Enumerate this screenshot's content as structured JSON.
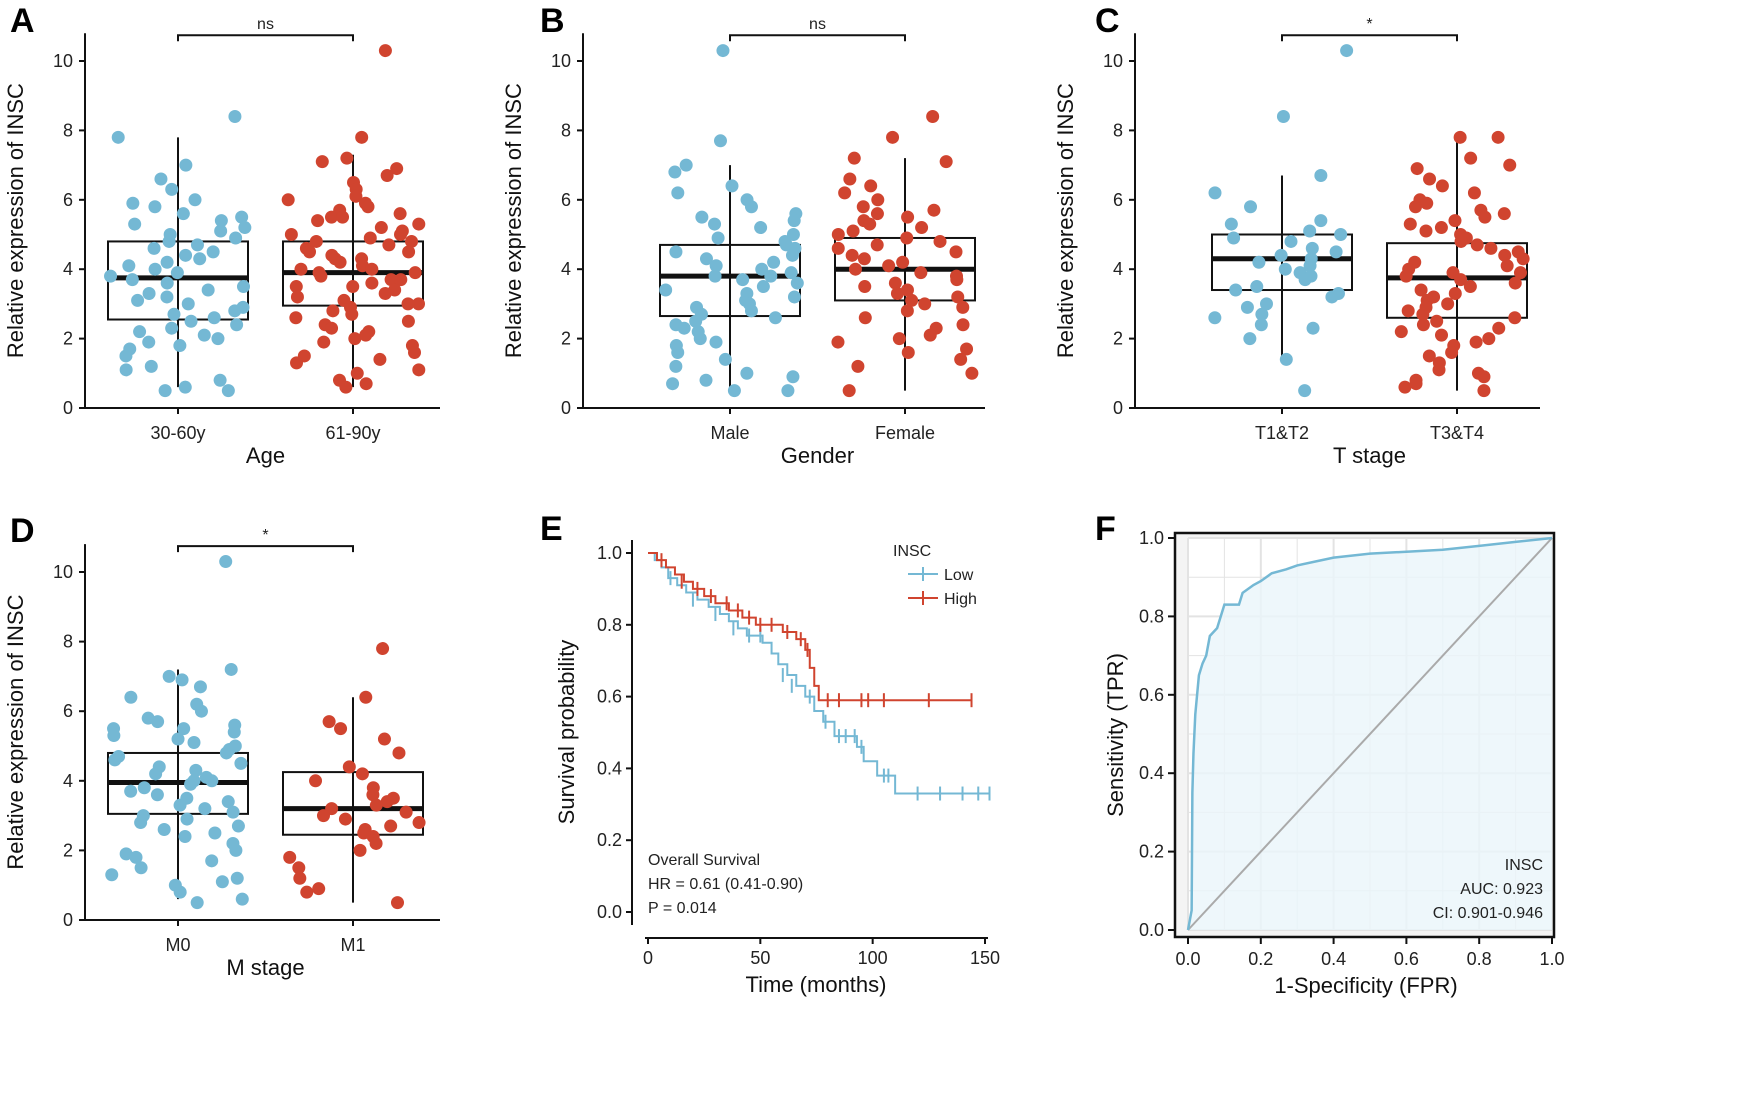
{
  "colors": {
    "low": "#74B8D4",
    "high": "#D0442F",
    "roc_fill": "#EAF5FA",
    "diag": "#AAAAAA"
  },
  "chart_data": [
    {
      "panel": "A",
      "type": "boxplot",
      "xlabel": "Age",
      "ylabel": "Relative expression of INSC",
      "yticks": [
        0,
        2,
        4,
        6,
        8,
        10
      ],
      "ylim": [
        0,
        10.8
      ],
      "significance": "ns",
      "groups": [
        {
          "label": "30-60y",
          "color": "#74B8D4",
          "q1": 2.55,
          "median": 3.75,
          "q3": 4.8,
          "whisker_low": 0.6,
          "whisker_high": 7.8,
          "points": [
            8.4,
            7.8,
            7.0,
            6.6,
            6.3,
            6.0,
            5.9,
            5.8,
            5.6,
            5.5,
            5.4,
            5.3,
            5.2,
            5.1,
            5.0,
            4.9,
            4.8,
            4.7,
            4.6,
            4.5,
            4.4,
            4.3,
            4.2,
            4.1,
            4.0,
            3.9,
            3.8,
            3.7,
            3.6,
            3.5,
            3.4,
            3.3,
            3.2,
            3.1,
            3.0,
            2.9,
            2.8,
            2.7,
            2.6,
            2.5,
            2.4,
            2.3,
            2.2,
            2.1,
            2.0,
            1.9,
            1.8,
            1.7,
            1.5,
            1.2,
            1.1,
            0.8,
            0.6,
            0.5,
            0.5
          ]
        },
        {
          "label": "61-90y",
          "color": "#D0442F",
          "q1": 2.95,
          "median": 3.9,
          "q3": 4.8,
          "whisker_low": 0.6,
          "whisker_high": 7.3,
          "points": [
            10.3,
            7.8,
            7.2,
            7.1,
            6.9,
            6.7,
            6.5,
            6.3,
            6.1,
            6.0,
            5.9,
            5.8,
            5.7,
            5.6,
            5.5,
            5.5,
            5.4,
            5.3,
            5.2,
            5.1,
            5.0,
            5.0,
            4.9,
            4.8,
            4.8,
            4.7,
            4.6,
            4.5,
            4.5,
            4.4,
            4.3,
            4.3,
            4.2,
            4.1,
            4.0,
            4.0,
            3.9,
            3.9,
            3.8,
            3.7,
            3.7,
            3.6,
            3.5,
            3.5,
            3.4,
            3.3,
            3.2,
            3.1,
            3.0,
            3.0,
            2.9,
            2.8,
            2.7,
            2.6,
            2.5,
            2.4,
            2.3,
            2.2,
            2.1,
            2.0,
            1.9,
            1.8,
            1.6,
            1.5,
            1.4,
            1.3,
            1.1,
            1.0,
            0.8,
            0.7,
            0.6
          ]
        }
      ]
    },
    {
      "panel": "B",
      "type": "boxplot",
      "xlabel": "Gender",
      "ylabel": "Relative expression of INSC",
      "yticks": [
        0,
        2,
        4,
        6,
        8,
        10
      ],
      "ylim": [
        0,
        10.8
      ],
      "significance": "ns",
      "groups": [
        {
          "label": "Male",
          "color": "#74B8D4",
          "q1": 2.65,
          "median": 3.8,
          "q3": 4.7,
          "whisker_low": 0.5,
          "whisker_high": 7.0,
          "points": [
            10.3,
            7.7,
            7.0,
            6.8,
            6.4,
            6.2,
            6.0,
            5.8,
            5.6,
            5.5,
            5.4,
            5.3,
            5.2,
            5.0,
            4.9,
            4.8,
            4.7,
            4.6,
            4.5,
            4.4,
            4.3,
            4.2,
            4.1,
            4.0,
            3.9,
            3.8,
            3.8,
            3.7,
            3.6,
            3.5,
            3.4,
            3.3,
            3.2,
            3.1,
            3.0,
            2.9,
            2.8,
            2.7,
            2.6,
            2.5,
            2.4,
            2.3,
            2.2,
            2.0,
            1.9,
            1.8,
            1.6,
            1.4,
            1.2,
            1.0,
            0.9,
            0.8,
            0.7,
            0.5,
            0.5
          ]
        },
        {
          "label": "Female",
          "color": "#D0442F",
          "q1": 3.1,
          "median": 4.0,
          "q3": 4.9,
          "whisker_low": 0.5,
          "whisker_high": 7.2,
          "points": [
            8.4,
            7.8,
            7.2,
            7.1,
            6.6,
            6.4,
            6.2,
            6.0,
            5.8,
            5.7,
            5.6,
            5.5,
            5.4,
            5.3,
            5.2,
            5.1,
            5.0,
            4.9,
            4.8,
            4.7,
            4.6,
            4.5,
            4.4,
            4.3,
            4.2,
            4.1,
            4.0,
            3.9,
            3.8,
            3.7,
            3.6,
            3.5,
            3.4,
            3.3,
            3.2,
            3.1,
            3.0,
            2.9,
            2.8,
            2.6,
            2.4,
            2.3,
            2.1,
            2.0,
            1.9,
            1.7,
            1.6,
            1.4,
            1.2,
            1.0,
            0.5
          ]
        }
      ]
    },
    {
      "panel": "C",
      "type": "boxplot",
      "xlabel": "T stage",
      "ylabel": "Relative expression of INSC",
      "yticks": [
        0,
        2,
        4,
        6,
        8,
        10
      ],
      "ylim": [
        0,
        10.8
      ],
      "significance": "*",
      "groups": [
        {
          "label": "T1&T2",
          "color": "#74B8D4",
          "q1": 3.4,
          "median": 4.3,
          "q3": 5.0,
          "whisker_low": 1.4,
          "whisker_high": 6.7,
          "points": [
            10.3,
            8.4,
            6.7,
            6.2,
            5.8,
            5.4,
            5.3,
            5.1,
            5.0,
            4.9,
            4.8,
            4.6,
            4.5,
            4.4,
            4.3,
            4.2,
            4.1,
            4.0,
            3.9,
            3.8,
            3.7,
            3.5,
            3.4,
            3.3,
            3.2,
            3.0,
            2.9,
            2.7,
            2.6,
            2.4,
            2.3,
            2.0,
            1.4,
            0.5
          ]
        },
        {
          "label": "T3&T4",
          "color": "#D0442F",
          "q1": 2.6,
          "median": 3.75,
          "q3": 4.75,
          "whisker_low": 0.5,
          "whisker_high": 7.8,
          "points": [
            7.8,
            7.8,
            7.2,
            7.0,
            6.9,
            6.6,
            6.4,
            6.2,
            6.0,
            5.9,
            5.8,
            5.7,
            5.6,
            5.5,
            5.4,
            5.3,
            5.2,
            5.1,
            5.0,
            4.9,
            4.8,
            4.7,
            4.6,
            4.5,
            4.4,
            4.3,
            4.2,
            4.1,
            4.0,
            3.9,
            3.9,
            3.8,
            3.7,
            3.6,
            3.5,
            3.4,
            3.3,
            3.2,
            3.1,
            3.0,
            2.9,
            2.8,
            2.7,
            2.6,
            2.5,
            2.4,
            2.3,
            2.2,
            2.1,
            2.0,
            1.9,
            1.8,
            1.6,
            1.5,
            1.3,
            1.1,
            1.0,
            0.9,
            0.8,
            0.7,
            0.6,
            0.5
          ]
        }
      ]
    },
    {
      "panel": "D",
      "type": "boxplot",
      "xlabel": "M stage",
      "ylabel": "Relative expression of INSC",
      "yticks": [
        0,
        2,
        4,
        6,
        8,
        10
      ],
      "ylim": [
        0,
        10.8
      ],
      "significance": "*",
      "groups": [
        {
          "label": "M0",
          "color": "#74B8D4",
          "q1": 3.05,
          "median": 3.95,
          "q3": 4.8,
          "whisker_low": 0.6,
          "whisker_high": 7.2,
          "points": [
            10.3,
            7.2,
            7.0,
            6.9,
            6.7,
            6.4,
            6.2,
            6.0,
            5.8,
            5.7,
            5.6,
            5.5,
            5.5,
            5.4,
            5.3,
            5.2,
            5.1,
            5.0,
            4.9,
            4.8,
            4.7,
            4.6,
            4.5,
            4.4,
            4.3,
            4.2,
            4.1,
            4.0,
            4.0,
            3.9,
            3.8,
            3.7,
            3.6,
            3.5,
            3.4,
            3.3,
            3.2,
            3.1,
            3.0,
            2.9,
            2.8,
            2.7,
            2.6,
            2.5,
            2.4,
            2.2,
            2.0,
            1.9,
            1.8,
            1.7,
            1.5,
            1.3,
            1.2,
            1.1,
            1.0,
            0.8,
            0.6,
            0.5
          ]
        },
        {
          "label": "M1",
          "color": "#D0442F",
          "q1": 2.45,
          "median": 3.2,
          "q3": 4.25,
          "whisker_low": 0.5,
          "whisker_high": 6.4,
          "points": [
            7.8,
            6.4,
            5.7,
            5.5,
            5.2,
            4.8,
            4.4,
            4.2,
            4.0,
            3.8,
            3.6,
            3.5,
            3.4,
            3.3,
            3.2,
            3.1,
            3.0,
            2.9,
            2.8,
            2.7,
            2.6,
            2.5,
            2.4,
            2.2,
            2.0,
            1.8,
            1.5,
            1.2,
            0.9,
            0.8,
            0.5
          ]
        }
      ]
    },
    {
      "panel": "E",
      "type": "line",
      "subtype": "kaplan-meier",
      "xlabel": "Time (months)",
      "ylabel": "Survival probability",
      "xticks": [
        0,
        50,
        100,
        150
      ],
      "yticks": [
        0.0,
        0.2,
        0.4,
        0.6,
        0.8,
        1.0
      ],
      "xlim": [
        0,
        155
      ],
      "ylim": [
        0,
        1
      ],
      "legend": {
        "title": "INSC",
        "position": "top-right"
      },
      "annotations": [
        "Overall Survival",
        "HR = 0.61 (0.41-0.90)",
        "P = 0.014"
      ],
      "series": [
        {
          "name": "Low",
          "color": "#74B8D4",
          "steps": [
            [
              0,
              1.0
            ],
            [
              3,
              0.98
            ],
            [
              6,
              0.96
            ],
            [
              9,
              0.93
            ],
            [
              13,
              0.91
            ],
            [
              17,
              0.89
            ],
            [
              22,
              0.87
            ],
            [
              27,
              0.85
            ],
            [
              32,
              0.83
            ],
            [
              36,
              0.81
            ],
            [
              40,
              0.79
            ],
            [
              44,
              0.77
            ],
            [
              51,
              0.75
            ],
            [
              55,
              0.72
            ],
            [
              58,
              0.69
            ],
            [
              62,
              0.66
            ],
            [
              66,
              0.63
            ],
            [
              70,
              0.6
            ],
            [
              74,
              0.56
            ],
            [
              78,
              0.53
            ],
            [
              83,
              0.49
            ],
            [
              93,
              0.46
            ],
            [
              96,
              0.42
            ],
            [
              102,
              0.38
            ],
            [
              110,
              0.33
            ],
            [
              152,
              0.33
            ]
          ],
          "censored": [
            [
              10,
              0.93
            ],
            [
              20,
              0.87
            ],
            [
              30,
              0.83
            ],
            [
              38,
              0.79
            ],
            [
              45,
              0.77
            ],
            [
              50,
              0.77
            ],
            [
              60,
              0.66
            ],
            [
              64,
              0.63
            ],
            [
              72,
              0.6
            ],
            [
              79,
              0.53
            ],
            [
              85,
              0.49
            ],
            [
              88,
              0.49
            ],
            [
              92,
              0.49
            ],
            [
              95,
              0.46
            ],
            [
              105,
              0.38
            ],
            [
              107,
              0.38
            ],
            [
              120,
              0.33
            ],
            [
              130,
              0.33
            ],
            [
              140,
              0.33
            ],
            [
              147,
              0.33
            ],
            [
              152,
              0.33
            ]
          ]
        },
        {
          "name": "High",
          "color": "#D0442F",
          "steps": [
            [
              0,
              1.0
            ],
            [
              4,
              0.98
            ],
            [
              8,
              0.96
            ],
            [
              12,
              0.94
            ],
            [
              16,
              0.92
            ],
            [
              20,
              0.9
            ],
            [
              25,
              0.88
            ],
            [
              30,
              0.86
            ],
            [
              36,
              0.84
            ],
            [
              42,
              0.82
            ],
            [
              48,
              0.8
            ],
            [
              60,
              0.78
            ],
            [
              66,
              0.76
            ],
            [
              70,
              0.73
            ],
            [
              72,
              0.68
            ],
            [
              74,
              0.63
            ],
            [
              76,
              0.59
            ],
            [
              144,
              0.59
            ]
          ],
          "censored": [
            [
              6,
              0.98
            ],
            [
              15,
              0.92
            ],
            [
              22,
              0.9
            ],
            [
              28,
              0.88
            ],
            [
              35,
              0.86
            ],
            [
              40,
              0.84
            ],
            [
              45,
              0.82
            ],
            [
              50,
              0.8
            ],
            [
              55,
              0.8
            ],
            [
              62,
              0.78
            ],
            [
              68,
              0.76
            ],
            [
              71,
              0.73
            ],
            [
              80,
              0.59
            ],
            [
              85,
              0.59
            ],
            [
              95,
              0.59
            ],
            [
              98,
              0.59
            ],
            [
              105,
              0.59
            ],
            [
              125,
              0.59
            ],
            [
              144,
              0.59
            ]
          ]
        }
      ]
    },
    {
      "panel": "F",
      "type": "line",
      "subtype": "roc",
      "xlabel": "1-Specificity (FPR)",
      "ylabel": "Sensitivity (TPR)",
      "xticks": [
        0.0,
        0.2,
        0.4,
        0.6,
        0.8,
        1.0
      ],
      "yticks": [
        0.0,
        0.2,
        0.4,
        0.6,
        0.8,
        1.0
      ],
      "xlim": [
        0,
        1
      ],
      "ylim": [
        0,
        1
      ],
      "grid": true,
      "annotations": [
        "INSC",
        "AUC: 0.923",
        "CI: 0.901-0.946"
      ],
      "series": [
        {
          "name": "INSC",
          "color": "#74B8D4",
          "points": [
            [
              0,
              0
            ],
            [
              0.01,
              0.05
            ],
            [
              0.012,
              0.35
            ],
            [
              0.015,
              0.45
            ],
            [
              0.02,
              0.55
            ],
            [
              0.025,
              0.6
            ],
            [
              0.03,
              0.65
            ],
            [
              0.04,
              0.68
            ],
            [
              0.05,
              0.7
            ],
            [
              0.06,
              0.75
            ],
            [
              0.08,
              0.77
            ],
            [
              0.09,
              0.8
            ],
            [
              0.1,
              0.83
            ],
            [
              0.14,
              0.83
            ],
            [
              0.15,
              0.86
            ],
            [
              0.18,
              0.88
            ],
            [
              0.2,
              0.89
            ],
            [
              0.23,
              0.91
            ],
            [
              0.27,
              0.92
            ],
            [
              0.3,
              0.93
            ],
            [
              0.35,
              0.94
            ],
            [
              0.4,
              0.95
            ],
            [
              0.5,
              0.96
            ],
            [
              0.6,
              0.965
            ],
            [
              0.7,
              0.97
            ],
            [
              0.8,
              0.98
            ],
            [
              0.9,
              0.99
            ],
            [
              1,
              1
            ]
          ]
        }
      ]
    }
  ]
}
